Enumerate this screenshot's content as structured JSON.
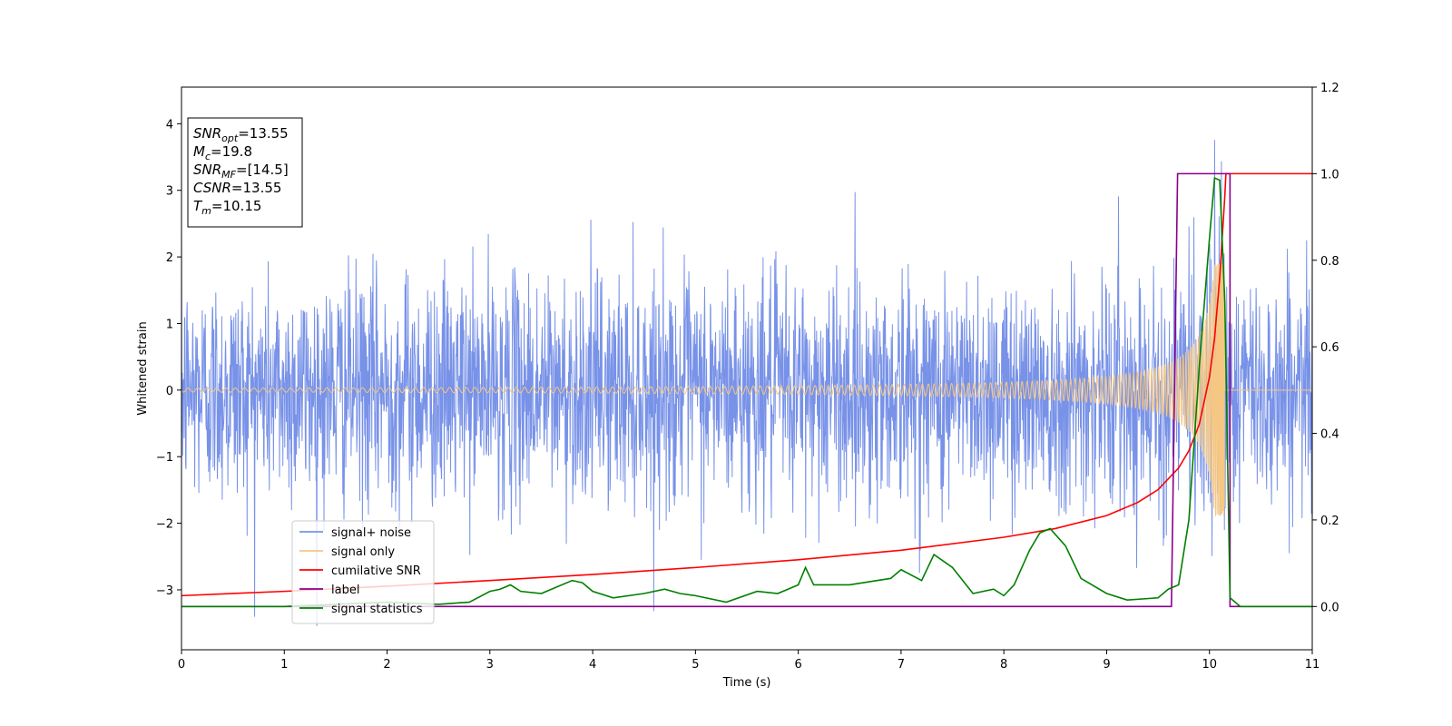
{
  "chart_data": {
    "type": "line",
    "xlabel": "Time (s)",
    "ylabel": "Whitened strain",
    "xlim": [
      0,
      11
    ],
    "ylim": [
      -3.9,
      4.55
    ],
    "y2lim": [
      -0.1,
      1.2
    ],
    "xticks": [
      "0",
      "1",
      "2",
      "3",
      "4",
      "5",
      "6",
      "7",
      "8",
      "9",
      "10",
      "11"
    ],
    "xtick_values": [
      0,
      1,
      2,
      3,
      4,
      5,
      6,
      7,
      8,
      9,
      10,
      11
    ],
    "yticks": [
      "−3",
      "−2",
      "−1",
      "0",
      "1",
      "2",
      "3",
      "4"
    ],
    "ytick_values": [
      -3,
      -2,
      -1,
      0,
      1,
      2,
      3,
      4
    ],
    "y2ticks": [
      "0.0",
      "0.2",
      "0.4",
      "0.6",
      "0.8",
      "1.0",
      "1.2"
    ],
    "y2tick_values": [
      0,
      0.2,
      0.4,
      0.6,
      0.8,
      1.0,
      1.2
    ],
    "grid": false,
    "legend_position": "lower-left",
    "series": [
      {
        "name": "signal+ noise",
        "axis": "left",
        "color": "#7892e8",
        "style": "noise",
        "amplitude_sigma": 0.85,
        "x_range": [
          0,
          11
        ]
      },
      {
        "name": "signal only",
        "axis": "left",
        "color": "#f5c783",
        "style": "chirp",
        "t_merger": 10.15,
        "peak_amplitude": 1.9
      },
      {
        "name": "cumilative SNR",
        "axis": "right",
        "color": "#ff0000",
        "x": [
          0,
          1,
          2,
          3,
          4,
          5,
          6,
          7,
          8,
          8.5,
          9,
          9.3,
          9.5,
          9.7,
          9.8,
          9.9,
          10.0,
          10.05,
          10.1,
          10.15,
          10.16,
          11
        ],
        "y": [
          0.025,
          0.035,
          0.047,
          0.06,
          0.074,
          0.09,
          0.108,
          0.13,
          0.16,
          0.18,
          0.21,
          0.24,
          0.27,
          0.32,
          0.36,
          0.42,
          0.53,
          0.62,
          0.76,
          0.95,
          1.0,
          1.0
        ]
      },
      {
        "name": "label",
        "axis": "right",
        "color": "#8b008b",
        "x": [
          0,
          9.63,
          9.69,
          10.2,
          10.2,
          11
        ],
        "y": [
          0,
          0,
          1.0,
          1.0,
          0,
          0
        ]
      },
      {
        "name": "signal statistics",
        "axis": "right",
        "color": "#008000",
        "x": [
          0,
          1,
          1.5,
          2,
          2.5,
          2.8,
          3,
          3.1,
          3.2,
          3.3,
          3.5,
          3.8,
          3.9,
          4.0,
          4.2,
          4.5,
          4.7,
          4.85,
          5.0,
          5.3,
          5.6,
          5.8,
          6.0,
          6.07,
          6.15,
          6.5,
          6.9,
          7.0,
          7.2,
          7.32,
          7.5,
          7.7,
          7.9,
          8.0,
          8.1,
          8.25,
          8.35,
          8.45,
          8.6,
          8.75,
          9.0,
          9.2,
          9.5,
          9.6,
          9.7,
          9.8,
          9.9,
          10.0,
          10.05,
          10.1,
          10.15,
          10.2,
          10.3,
          11
        ],
        "y": [
          0.0,
          0.0,
          0.005,
          0.01,
          0.005,
          0.01,
          0.035,
          0.04,
          0.05,
          0.035,
          0.03,
          0.06,
          0.055,
          0.035,
          0.02,
          0.03,
          0.04,
          0.03,
          0.025,
          0.01,
          0.035,
          0.03,
          0.05,
          0.09,
          0.05,
          0.05,
          0.065,
          0.085,
          0.06,
          0.12,
          0.09,
          0.03,
          0.04,
          0.025,
          0.05,
          0.13,
          0.17,
          0.18,
          0.14,
          0.065,
          0.03,
          0.015,
          0.02,
          0.04,
          0.05,
          0.2,
          0.55,
          0.85,
          0.99,
          0.985,
          0.7,
          0.02,
          0.0,
          0.0
        ]
      }
    ]
  },
  "info_box": {
    "lines": [
      {
        "var": "SNR",
        "sub": "opt",
        "value": "=13.55"
      },
      {
        "var": "M",
        "sub": "c",
        "value": "=19.8"
      },
      {
        "var": "SNR",
        "sub": "MF",
        "value": "=[14.5]"
      },
      {
        "var": "CSNR",
        "sub": "",
        "value": "=13.55"
      },
      {
        "var": "T",
        "sub": "m",
        "value": "=10.15"
      }
    ]
  }
}
